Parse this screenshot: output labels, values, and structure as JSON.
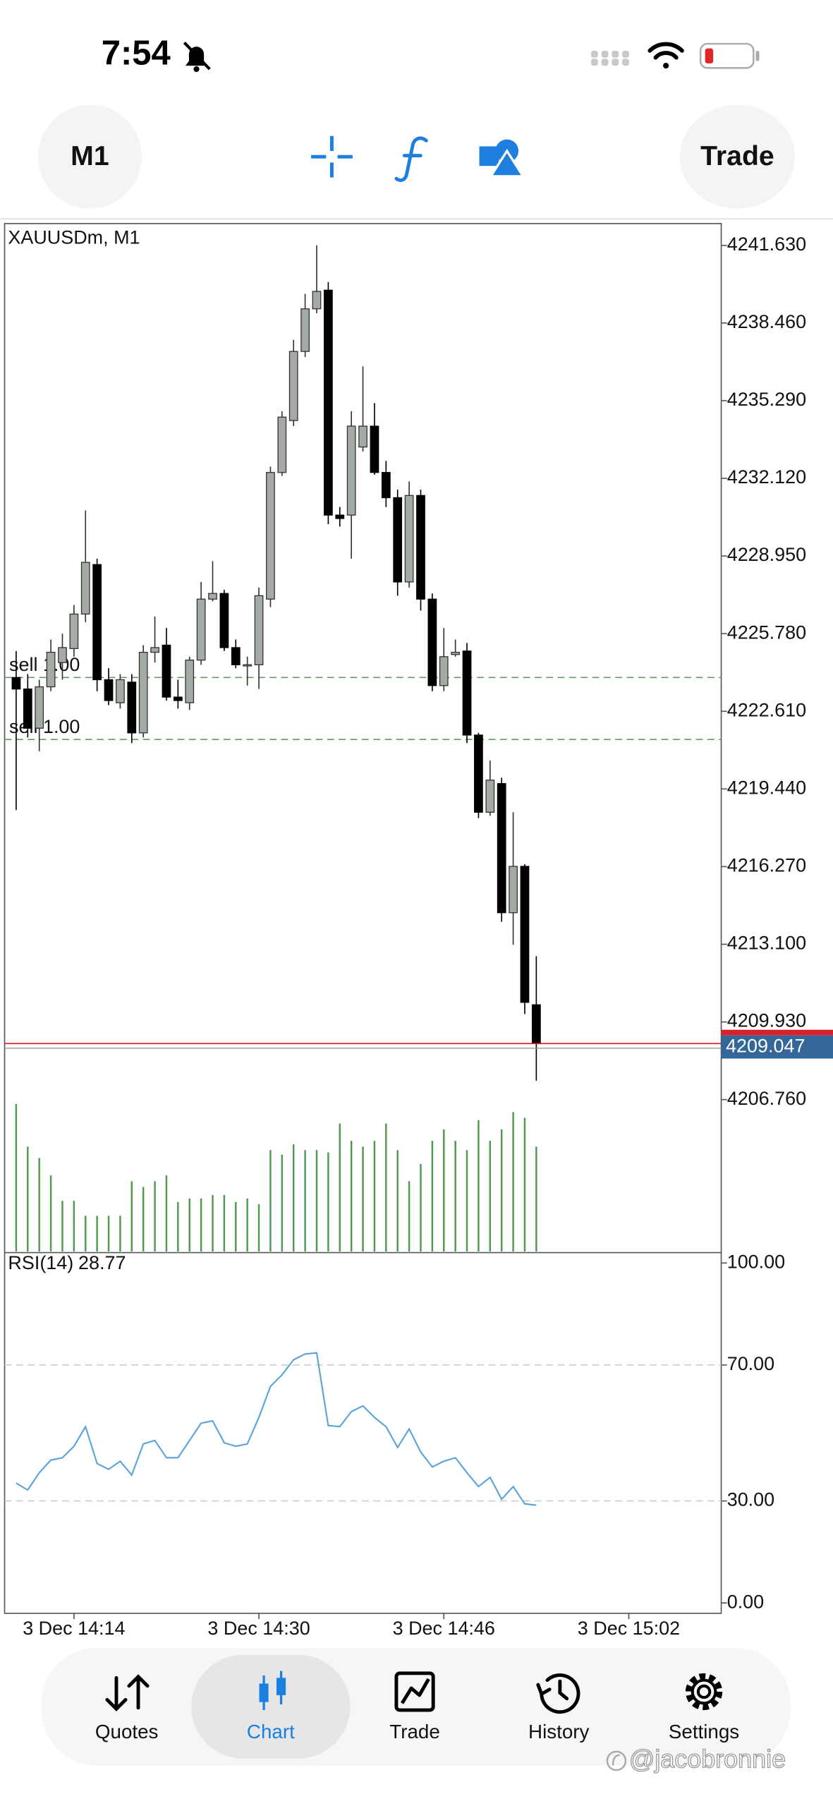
{
  "status_bar": {
    "time": "7:54"
  },
  "toolbar": {
    "timeframe": "M1",
    "trade_button": "Trade"
  },
  "chart_data": {
    "type": "candlestick",
    "title": "XAUUSDm, M1",
    "x": [
      "3 Dec 14:09",
      "3 Dec 14:10",
      "3 Dec 14:11",
      "3 Dec 14:12",
      "3 Dec 14:13",
      "3 Dec 14:14",
      "3 Dec 14:15",
      "3 Dec 14:16",
      "3 Dec 14:17",
      "3 Dec 14:18",
      "3 Dec 14:19",
      "3 Dec 14:20",
      "3 Dec 14:21",
      "3 Dec 14:22",
      "3 Dec 14:23",
      "3 Dec 14:24",
      "3 Dec 14:25",
      "3 Dec 14:26",
      "3 Dec 14:27",
      "3 Dec 14:28",
      "3 Dec 14:29",
      "3 Dec 14:30",
      "3 Dec 14:31",
      "3 Dec 14:32",
      "3 Dec 14:33",
      "3 Dec 14:34",
      "3 Dec 14:35",
      "3 Dec 14:36",
      "3 Dec 14:37",
      "3 Dec 14:38",
      "3 Dec 14:39",
      "3 Dec 14:40",
      "3 Dec 14:41",
      "3 Dec 14:42",
      "3 Dec 14:43",
      "3 Dec 14:44",
      "3 Dec 14:45",
      "3 Dec 14:46",
      "3 Dec 14:47",
      "3 Dec 14:48",
      "3 Dec 14:49",
      "3 Dec 14:50",
      "3 Dec 14:51",
      "3 Dec 14:52",
      "3 Dec 14:53",
      "3 Dec 14:54"
    ],
    "open": [
      4223.99,
      4223.52,
      4221.92,
      4223.61,
      4224.6,
      4225.17,
      4226.58,
      4228.6,
      4223.9,
      4222.96,
      4223.8,
      4221.73,
      4225.02,
      4225.31,
      4223.19,
      4222.96,
      4224.7,
      4227.19,
      4227.42,
      4225.21,
      4224.46,
      4224.51,
      4227.19,
      4232.36,
      4234.48,
      4237.3,
      4239.04,
      4239.8,
      4230.62,
      4230.62,
      4233.4,
      4234.25,
      4232.36,
      4231.33,
      4227.89,
      4231.42,
      4227.19,
      4223.66,
      4224.93,
      4225.07,
      4221.64,
      4218.49,
      4219.66,
      4214.39,
      4216.28,
      4210.63
    ],
    "high": [
      4225.07,
      4224.13,
      4223.9,
      4225.54,
      4225.78,
      4226.95,
      4230.81,
      4228.84,
      4224.37,
      4224.13,
      4224.13,
      4225.31,
      4226.48,
      4226.01,
      4223.9,
      4224.84,
      4227.89,
      4228.74,
      4227.57,
      4225.54,
      4224.84,
      4227.66,
      4232.6,
      4234.86,
      4237.77,
      4239.65,
      4241.63,
      4240.13,
      4230.95,
      4234.86,
      4236.69,
      4235.19,
      4232.83,
      4231.66,
      4231.99,
      4231.66,
      4227.42,
      4226.01,
      4225.54,
      4225.4,
      4221.73,
      4220.6,
      4219.9,
      4218.49,
      4216.37,
      4212.61
    ],
    "low": [
      4218.58,
      4221.54,
      4220.98,
      4223.43,
      4223.9,
      4224.84,
      4226.25,
      4223.43,
      4222.86,
      4222.72,
      4221.31,
      4221.54,
      4224.6,
      4223.05,
      4222.72,
      4222.67,
      4224.51,
      4227.1,
      4225.07,
      4224.37,
      4223.66,
      4223.52,
      4226.86,
      4232.22,
      4234.25,
      4237.07,
      4238.86,
      4230.25,
      4230.15,
      4228.84,
      4233.21,
      4232.27,
      4230.95,
      4227.33,
      4227.66,
      4226.72,
      4223.43,
      4223.43,
      4224.84,
      4221.31,
      4218.25,
      4218.35,
      4214.02,
      4213.08,
      4210.25,
      4207.53
    ],
    "close": [
      4223.52,
      4221.92,
      4223.61,
      4225.02,
      4225.21,
      4226.58,
      4228.69,
      4223.9,
      4223.05,
      4223.9,
      4221.73,
      4225.02,
      4225.21,
      4223.19,
      4223.05,
      4224.7,
      4227.19,
      4227.42,
      4225.21,
      4224.51,
      4224.51,
      4227.33,
      4232.36,
      4234.62,
      4237.3,
      4239.04,
      4239.75,
      4230.62,
      4230.48,
      4234.25,
      4234.25,
      4232.36,
      4231.33,
      4227.89,
      4231.42,
      4227.19,
      4223.66,
      4224.84,
      4225.02,
      4221.64,
      4218.49,
      4219.8,
      4214.39,
      4216.28,
      4210.73,
      4209.05
    ],
    "up_color": "#a4aaa4",
    "down_color": "#000000",
    "xlim": [
      "3 Dec 14:08",
      "3 Dec 15:10"
    ],
    "xticks": [
      "3 Dec 14:14",
      "3 Dec 14:30",
      "3 Dec 14:46",
      "3 Dec 15:02"
    ],
    "ylim": [
      4200.56,
      4242.52
    ],
    "yticks": [
      {
        "value": 4241.63,
        "label": "4241.630"
      },
      {
        "value": 4238.46,
        "label": "4238.460"
      },
      {
        "value": 4235.29,
        "label": "4235.290"
      },
      {
        "value": 4232.12,
        "label": "4232.120"
      },
      {
        "value": 4228.95,
        "label": "4228.950"
      },
      {
        "value": 4225.78,
        "label": "4225.780"
      },
      {
        "value": 4222.61,
        "label": "4222.610"
      },
      {
        "value": 4219.44,
        "label": "4219.440"
      },
      {
        "value": 4216.27,
        "label": "4216.270"
      },
      {
        "value": 4213.1,
        "label": "4213.100"
      },
      {
        "value": 4209.93,
        "label": "4209.930"
      },
      {
        "value": 4206.76,
        "label": "4206.760"
      }
    ],
    "orders": [
      {
        "label": "sell 1.00",
        "price": 4223.99
      },
      {
        "label": "sell 1.00",
        "price": 4221.46
      }
    ],
    "order_color": "#5c9e5c",
    "bid": 4209.047,
    "bid_color": "#d0242a",
    "volume": {
      "values": [
        128,
        91,
        81,
        66,
        44,
        44,
        31,
        31,
        31,
        31,
        61,
        56,
        61,
        66,
        43,
        46,
        46,
        49,
        49,
        43,
        46,
        41,
        88,
        84,
        93,
        88,
        88,
        86,
        111,
        96,
        91,
        96,
        111,
        88,
        61,
        76,
        96,
        106,
        96,
        88,
        114,
        96,
        106,
        121,
        116,
        91
      ],
      "color": "#4f9a4f"
    },
    "rsi": {
      "title": "RSI(14)",
      "value": 28.77,
      "values": [
        35.25,
        33.22,
        38.31,
        42.03,
        42.71,
        46.1,
        51.86,
        41.02,
        39.32,
        41.69,
        37.63,
        46.78,
        47.8,
        42.71,
        42.71,
        47.8,
        52.88,
        53.56,
        47.12,
        46.1,
        46.78,
        54.58,
        63.73,
        67.12,
        71.53,
        73.22,
        73.56,
        52.2,
        51.86,
        56.27,
        57.97,
        54.58,
        51.86,
        45.76,
        51.19,
        44.41,
        40.0,
        41.69,
        42.71,
        38.31,
        34.24,
        36.95,
        30.51,
        34.24,
        29.15,
        28.77
      ],
      "color": "#5aa3dc",
      "ylim": [
        -3.05,
        103.05
      ],
      "yticks": [
        {
          "value": 100,
          "label": "100.00"
        },
        {
          "value": 70,
          "label": "70.00"
        },
        {
          "value": 30,
          "label": "30.00"
        },
        {
          "value": 0,
          "label": "0.00"
        }
      ],
      "levels": [
        70,
        30
      ]
    }
  },
  "tab_bar": {
    "tabs": [
      "Quotes",
      "Chart",
      "Trade",
      "History",
      "Settings"
    ],
    "active": 1
  },
  "watermark": "@jacobronnie"
}
